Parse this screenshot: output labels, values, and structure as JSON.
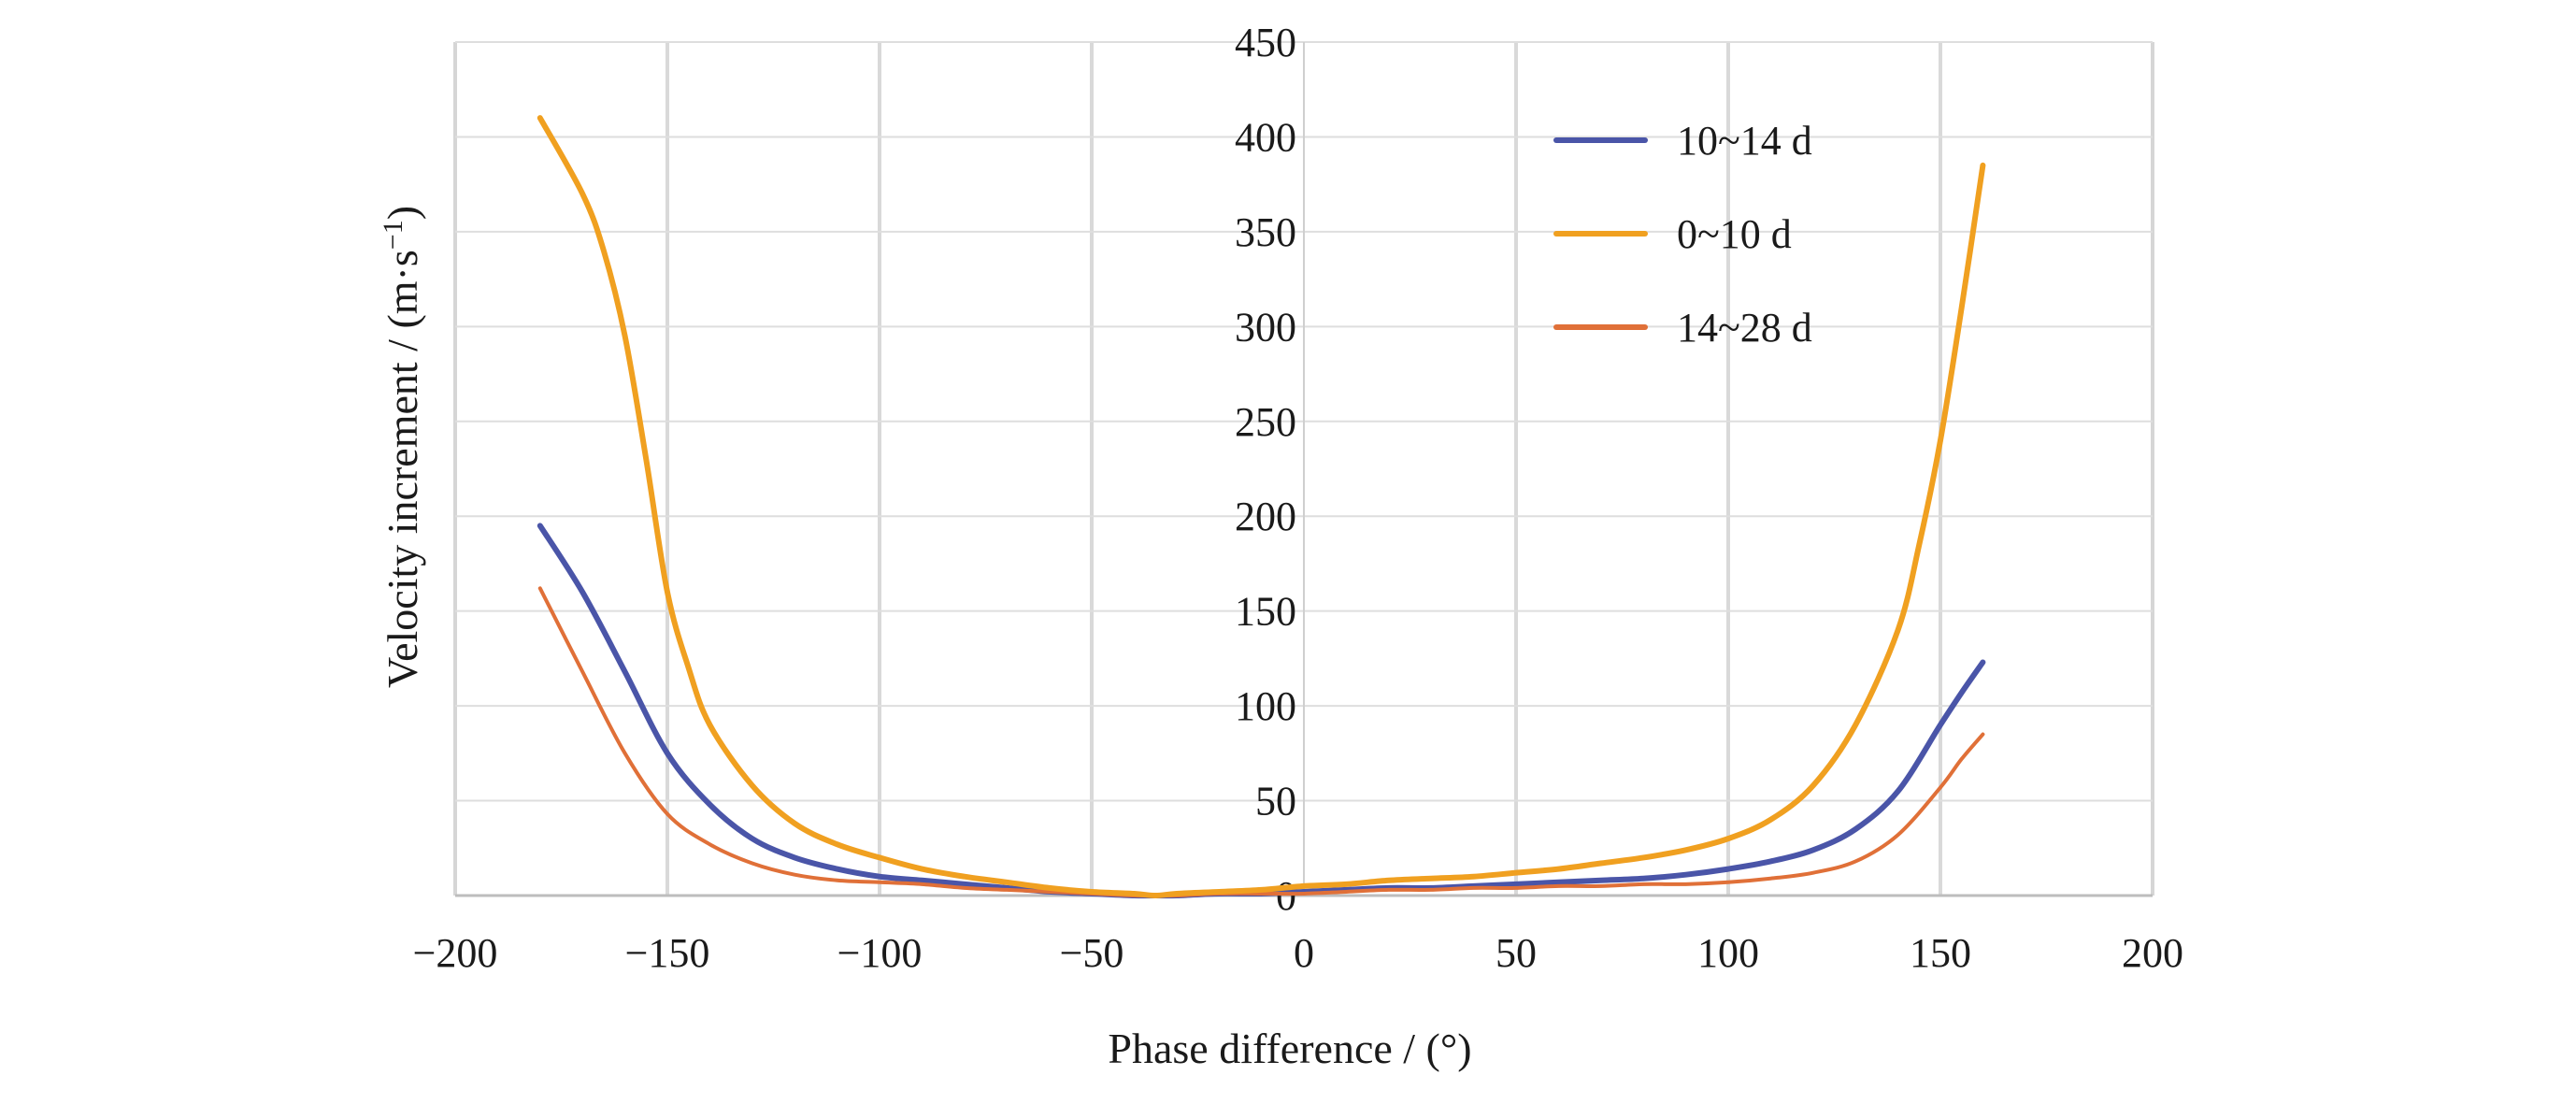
{
  "chart_data": {
    "type": "line",
    "title": "",
    "xlabel": "Phase difference / (°)",
    "ylabel": "Velocity increment / (m·s",
    "ylabel_sup": "−1",
    "ylabel_close": ")",
    "xlim": [
      -200,
      200
    ],
    "ylim": [
      0,
      450
    ],
    "grid": true,
    "legend_position": "top-right",
    "x_ticks": [
      -200,
      -150,
      -100,
      -50,
      0,
      50,
      100,
      150,
      200
    ],
    "x_tick_labels": [
      "−200",
      "−150",
      "−100",
      "−50",
      "0",
      "50",
      "100",
      "150",
      "200"
    ],
    "y_ticks": [
      0,
      50,
      100,
      150,
      200,
      250,
      300,
      350,
      400,
      450
    ],
    "y_tick_labels": [
      "0",
      "50",
      "100",
      "150",
      "200",
      "250",
      "300",
      "350",
      "400",
      "450"
    ],
    "series": [
      {
        "name": "10~14 d",
        "color": "#4a55a8",
        "x": [
          -180,
          -170,
          -160,
          -150,
          -140,
          -130,
          -120,
          -110,
          -100,
          -90,
          -80,
          -70,
          -60,
          -50,
          -40,
          -35,
          -30,
          -20,
          -10,
          0,
          10,
          20,
          30,
          40,
          50,
          60,
          70,
          80,
          90,
          100,
          110,
          120,
          130,
          140,
          150,
          155,
          160
        ],
        "y": [
          195,
          160,
          118,
          75,
          48,
          30,
          20,
          14,
          10,
          8,
          6,
          4,
          2,
          1,
          0,
          0,
          0,
          1,
          1,
          2,
          3,
          4,
          4,
          5,
          6,
          7,
          8,
          9,
          11,
          14,
          18,
          24,
          35,
          55,
          90,
          107,
          123
        ]
      },
      {
        "name": "0~10 d",
        "color": "#f0a020",
        "x": [
          -180,
          -170,
          -165,
          -160,
          -155,
          -150,
          -145,
          -140,
          -130,
          -120,
          -110,
          -100,
          -90,
          -80,
          -70,
          -60,
          -50,
          -40,
          -35,
          -30,
          -20,
          -10,
          0,
          10,
          20,
          30,
          40,
          50,
          60,
          70,
          80,
          90,
          100,
          110,
          120,
          130,
          140,
          145,
          150,
          155,
          160
        ],
        "y": [
          410,
          370,
          340,
          295,
          230,
          160,
          120,
          90,
          58,
          38,
          27,
          20,
          14,
          10,
          7,
          4,
          2,
          1,
          0,
          1,
          2,
          3,
          5,
          6,
          8,
          9,
          10,
          12,
          14,
          17,
          20,
          24,
          30,
          40,
          58,
          90,
          140,
          185,
          240,
          310,
          385
        ]
      },
      {
        "name": "14~28 d",
        "color": "#e07038",
        "x": [
          -180,
          -170,
          -160,
          -150,
          -140,
          -130,
          -120,
          -110,
          -100,
          -90,
          -80,
          -70,
          -60,
          -50,
          -40,
          -35,
          -30,
          -20,
          -10,
          0,
          10,
          20,
          30,
          40,
          50,
          60,
          70,
          80,
          90,
          100,
          110,
          120,
          130,
          140,
          150,
          155,
          160
        ],
        "y": [
          162,
          118,
          75,
          43,
          27,
          17,
          11,
          8,
          7,
          6,
          4,
          3,
          2,
          1,
          0,
          0,
          0,
          1,
          1,
          1,
          2,
          3,
          3,
          4,
          4,
          5,
          5,
          6,
          6,
          7,
          9,
          12,
          18,
          32,
          57,
          72,
          85
        ]
      }
    ]
  }
}
